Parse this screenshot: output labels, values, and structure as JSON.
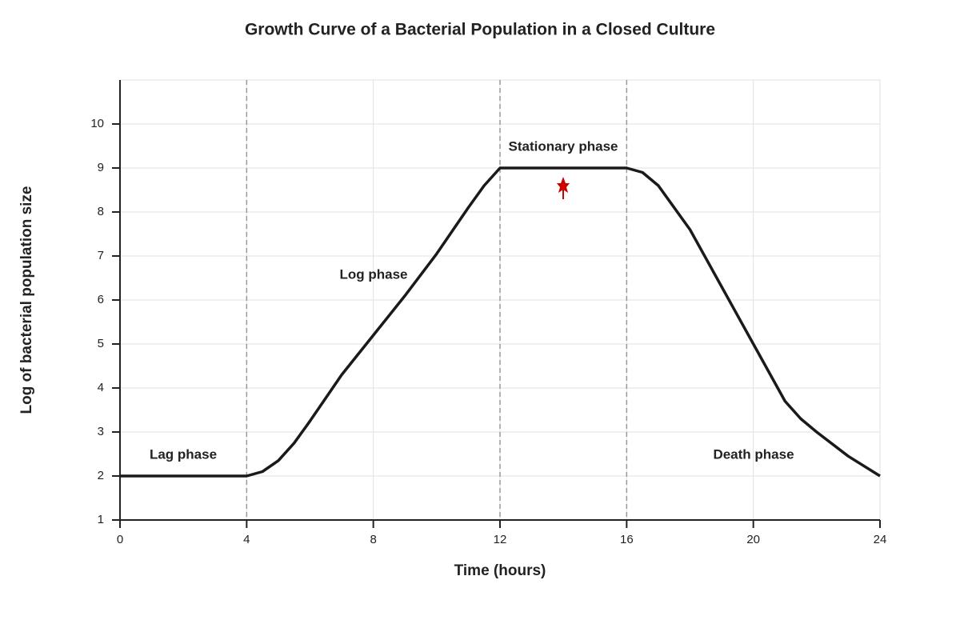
{
  "chart_data": {
    "type": "line",
    "title": "Growth Curve of a Bacterial Population in a Closed Culture",
    "x_label": "Time (hours)",
    "y_label": "Log of bacterial population size",
    "x": [
      0,
      4,
      4.5,
      5,
      5.5,
      6,
      7,
      8,
      9,
      10,
      11,
      11.5,
      12,
      16,
      16.5,
      17,
      18,
      19,
      20,
      21,
      21.5,
      22,
      23,
      24
    ],
    "values": [
      2,
      2,
      2.1,
      2.35,
      2.75,
      3.25,
      4.3,
      5.2,
      6.1,
      7.05,
      8.1,
      8.6,
      9,
      9,
      8.9,
      8.6,
      7.6,
      6.3,
      5,
      3.7,
      3.3,
      3.0,
      2.45,
      2
    ],
    "color": "#1a1a1a",
    "xlim": [
      0,
      24
    ],
    "xticks": [
      0,
      4,
      8,
      12,
      16,
      20,
      24
    ],
    "ylim": [
      1,
      11
    ],
    "yticks": [
      1,
      2,
      3,
      4,
      5,
      6,
      7,
      8,
      9,
      10
    ],
    "grid": true,
    "phase_boundaries": [
      4,
      12,
      16
    ],
    "annotations": [
      "Lag phase",
      "Log phase",
      "Stationary phase",
      "Death phase"
    ]
  }
}
